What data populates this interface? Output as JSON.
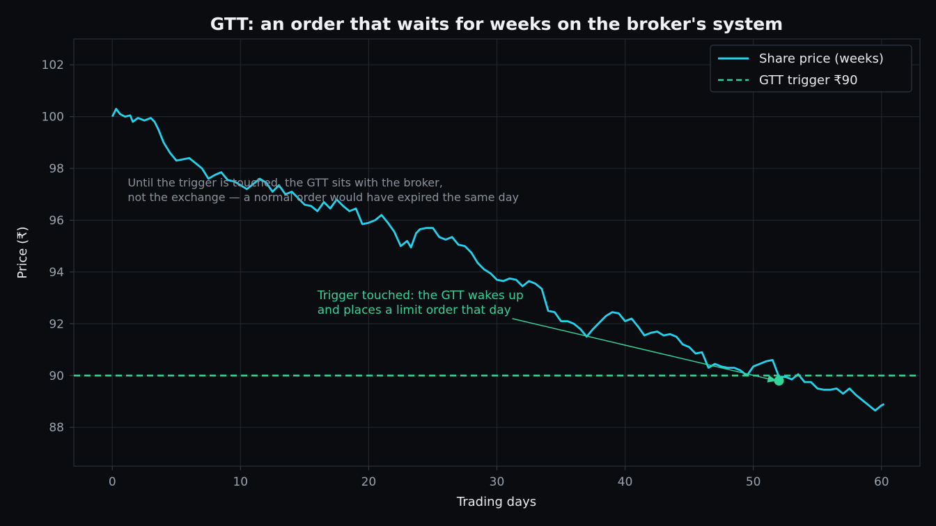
{
  "chart_data": {
    "type": "line",
    "title": "GTT: an order that waits for weeks on the broker's system",
    "xlabel": "Trading days",
    "ylabel": "Price (₹)",
    "xlim": [
      -3,
      63
    ],
    "ylim": [
      86.5,
      103
    ],
    "xticks": [
      0,
      10,
      20,
      30,
      40,
      50,
      60
    ],
    "yticks": [
      88,
      90,
      92,
      94,
      96,
      98,
      100,
      102
    ],
    "grid": true,
    "legend_position": "top-right",
    "series": [
      {
        "name": "Share price (weeks)",
        "color": "#22d3ee",
        "points": [
          [
            0,
            100.0
          ],
          [
            0.3,
            100.3
          ],
          [
            0.6,
            100.1
          ],
          [
            1.0,
            100.0
          ],
          [
            1.4,
            100.05
          ],
          [
            1.6,
            99.8
          ],
          [
            2.0,
            99.95
          ],
          [
            2.5,
            99.85
          ],
          [
            3.0,
            99.95
          ],
          [
            3.3,
            99.8
          ],
          [
            3.6,
            99.5
          ],
          [
            4.0,
            99.0
          ],
          [
            4.5,
            98.6
          ],
          [
            5.0,
            98.3
          ],
          [
            5.5,
            98.35
          ],
          [
            6.0,
            98.4
          ],
          [
            6.5,
            98.2
          ],
          [
            7.0,
            98.0
          ],
          [
            7.5,
            97.6
          ],
          [
            8.0,
            97.75
          ],
          [
            8.5,
            97.85
          ],
          [
            9.0,
            97.55
          ],
          [
            9.5,
            97.5
          ],
          [
            10.0,
            97.35
          ],
          [
            10.5,
            97.2
          ],
          [
            11.0,
            97.4
          ],
          [
            11.5,
            97.6
          ],
          [
            12.0,
            97.45
          ],
          [
            12.5,
            97.1
          ],
          [
            13.0,
            97.35
          ],
          [
            13.5,
            97.0
          ],
          [
            14.0,
            97.1
          ],
          [
            14.5,
            96.85
          ],
          [
            15.0,
            96.6
          ],
          [
            15.5,
            96.55
          ],
          [
            16.0,
            96.35
          ],
          [
            16.5,
            96.7
          ],
          [
            17.0,
            96.45
          ],
          [
            17.5,
            96.8
          ],
          [
            18.0,
            96.55
          ],
          [
            18.5,
            96.35
          ],
          [
            19.0,
            96.45
          ],
          [
            19.5,
            95.85
          ],
          [
            20.0,
            95.9
          ],
          [
            20.5,
            96.0
          ],
          [
            21.0,
            96.2
          ],
          [
            21.5,
            95.9
          ],
          [
            22.0,
            95.55
          ],
          [
            22.5,
            95.0
          ],
          [
            23.0,
            95.2
          ],
          [
            23.3,
            94.95
          ],
          [
            23.7,
            95.5
          ],
          [
            24.0,
            95.65
          ],
          [
            24.5,
            95.7
          ],
          [
            25.0,
            95.7
          ],
          [
            25.5,
            95.35
          ],
          [
            26.0,
            95.25
          ],
          [
            26.5,
            95.35
          ],
          [
            27.0,
            95.05
          ],
          [
            27.5,
            95.0
          ],
          [
            28.0,
            94.75
          ],
          [
            28.5,
            94.35
          ],
          [
            29.0,
            94.1
          ],
          [
            29.5,
            93.95
          ],
          [
            30.0,
            93.7
          ],
          [
            30.5,
            93.65
          ],
          [
            31.0,
            93.75
          ],
          [
            31.5,
            93.7
          ],
          [
            32.0,
            93.45
          ],
          [
            32.5,
            93.65
          ],
          [
            33.0,
            93.55
          ],
          [
            33.5,
            93.35
          ],
          [
            34.0,
            92.5
          ],
          [
            34.5,
            92.45
          ],
          [
            35.0,
            92.1
          ],
          [
            35.5,
            92.1
          ],
          [
            36.0,
            92.0
          ],
          [
            36.5,
            91.8
          ],
          [
            37.0,
            91.5
          ],
          [
            37.5,
            91.8
          ],
          [
            38.0,
            92.05
          ],
          [
            38.5,
            92.3
          ],
          [
            39.0,
            92.45
          ],
          [
            39.5,
            92.4
          ],
          [
            40.0,
            92.1
          ],
          [
            40.5,
            92.2
          ],
          [
            41.0,
            91.9
          ],
          [
            41.5,
            91.55
          ],
          [
            42.0,
            91.65
          ],
          [
            42.5,
            91.7
          ],
          [
            43.0,
            91.55
          ],
          [
            43.5,
            91.6
          ],
          [
            44.0,
            91.5
          ],
          [
            44.5,
            91.2
          ],
          [
            45.0,
            91.1
          ],
          [
            45.5,
            90.85
          ],
          [
            46.0,
            90.9
          ],
          [
            46.5,
            90.3
          ],
          [
            47.0,
            90.45
          ],
          [
            47.5,
            90.35
          ],
          [
            48.0,
            90.3
          ],
          [
            48.5,
            90.3
          ],
          [
            49.0,
            90.2
          ],
          [
            49.5,
            90.0
          ],
          [
            50.0,
            90.35
          ],
          [
            50.5,
            90.45
          ],
          [
            51.0,
            90.55
          ],
          [
            51.5,
            90.6
          ],
          [
            52.0,
            89.95
          ],
          [
            52.5,
            89.95
          ],
          [
            53.0,
            89.85
          ],
          [
            53.5,
            90.05
          ],
          [
            54.0,
            89.75
          ],
          [
            54.5,
            89.75
          ],
          [
            55.0,
            89.5
          ],
          [
            55.5,
            89.45
          ],
          [
            56.0,
            89.45
          ],
          [
            56.5,
            89.5
          ],
          [
            57.0,
            89.3
          ],
          [
            57.5,
            89.5
          ],
          [
            58.0,
            89.25
          ],
          [
            58.5,
            89.05
          ],
          [
            59.0,
            88.85
          ],
          [
            59.5,
            88.65
          ],
          [
            60.0,
            88.85
          ],
          [
            60.2,
            88.9
          ]
        ]
      },
      {
        "name": "GTT trigger ₹90",
        "color": "#34d399",
        "style": "dashed",
        "y": 90
      }
    ],
    "annotations": [
      {
        "lines": [
          "Until the trigger is touched, the GTT sits with the broker,",
          "not the exchange — a normal order would have expired the same day"
        ],
        "x": 1.2,
        "y": 97.3,
        "color": "#8b929b"
      },
      {
        "lines": [
          "Trigger touched: the GTT wakes up",
          "and places a limit order that day"
        ],
        "x": 16.0,
        "y": 92.95,
        "color": "#34d399",
        "arrow_from": [
          31.2,
          92.2
        ],
        "arrow_to": [
          52.0,
          89.8
        ]
      }
    ],
    "marker": {
      "x": 52.0,
      "y": 89.8,
      "color": "#34d399"
    }
  }
}
